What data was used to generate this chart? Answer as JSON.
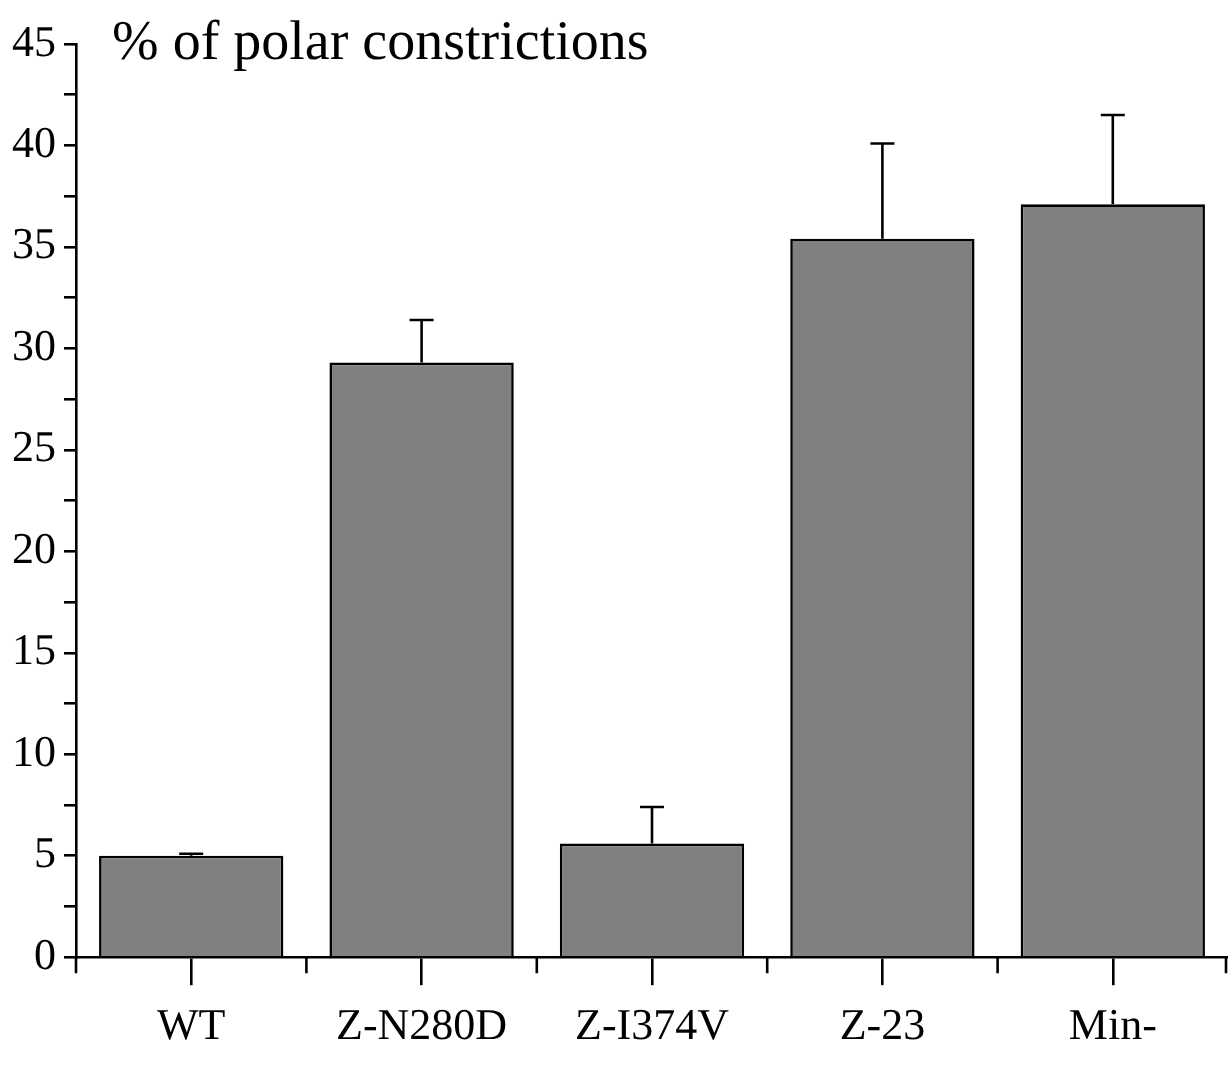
{
  "chart_data": {
    "type": "bar",
    "ylabel": "% of polar constrictions",
    "categories": [
      "WT",
      "Z-N280D",
      "Z-I374V",
      "Z-23",
      "Min-"
    ],
    "values": [
      5,
      29.3,
      5.6,
      35.4,
      37.1
    ],
    "errors": [
      [
        5,
        5.1
      ],
      [
        29.3,
        31.4
      ],
      [
        5.6,
        7.4
      ],
      [
        35.4,
        40.1
      ],
      [
        37.1,
        41.5
      ]
    ],
    "color": "#808080",
    "ylim": [
      0,
      45
    ],
    "yticks": [
      0,
      {
        "value": 2.5,
        "label": null
      },
      5,
      {
        "value": 7.5,
        "label": null
      },
      10,
      {
        "value": 12.5,
        "label": null
      },
      15,
      {
        "value": 17.5,
        "label": null
      },
      20,
      {
        "value": 22.5,
        "label": null
      },
      25,
      {
        "value": 27.5,
        "label": null
      },
      30,
      {
        "value": 32.5,
        "label": null
      },
      35,
      {
        "value": 37.5,
        "label": null
      },
      40,
      {
        "value": 42.5,
        "label": null
      },
      45
    ],
    "grid": false,
    "legend": false
  }
}
